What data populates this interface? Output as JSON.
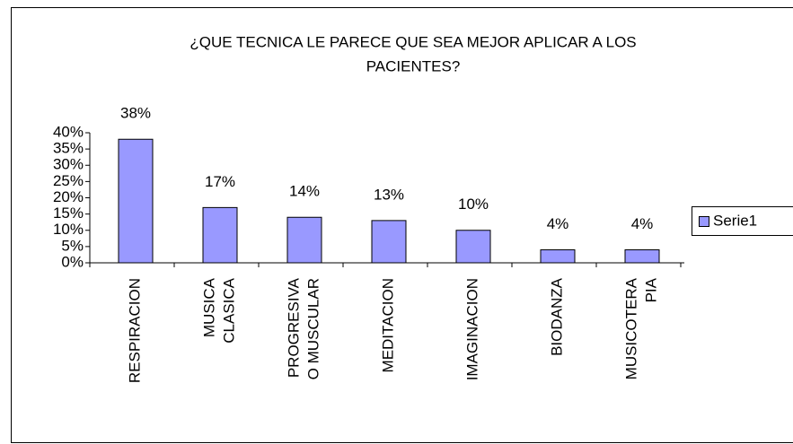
{
  "chart_data": {
    "type": "bar",
    "title": [
      "¿QUE TECNICA LE PARECE QUE SEA MEJOR APLICAR A LOS",
      "PACIENTES?"
    ],
    "categories": [
      [
        "RESPIRACION"
      ],
      [
        "MUSICA",
        "CLASICA"
      ],
      [
        "PROGRESIVA",
        "O MUSCULAR"
      ],
      [
        "MEDITACION"
      ],
      [
        "IMAGINACION"
      ],
      [
        "BIODANZA"
      ],
      [
        "MUSICOTERA",
        "PIA"
      ]
    ],
    "series": [
      {
        "name": "Serie1",
        "color": "#9999ff",
        "values": [
          38,
          17,
          14,
          13,
          10,
          4,
          4
        ],
        "value_labels": [
          "38%",
          "17%",
          "14%",
          "13%",
          "10%",
          "4%",
          "4%"
        ]
      }
    ],
    "ylim": [
      0,
      40
    ],
    "yticks": [
      {
        "value": 0,
        "label": "0%"
      },
      {
        "value": 5,
        "label": "5%"
      },
      {
        "value": 10,
        "label": "10%"
      },
      {
        "value": 15,
        "label": "15%"
      },
      {
        "value": 20,
        "label": "20%"
      },
      {
        "value": 25,
        "label": "25%"
      },
      {
        "value": 30,
        "label": "30%"
      },
      {
        "value": 35,
        "label": "35%"
      },
      {
        "value": 40,
        "label": "40%"
      }
    ],
    "legend": "right"
  }
}
